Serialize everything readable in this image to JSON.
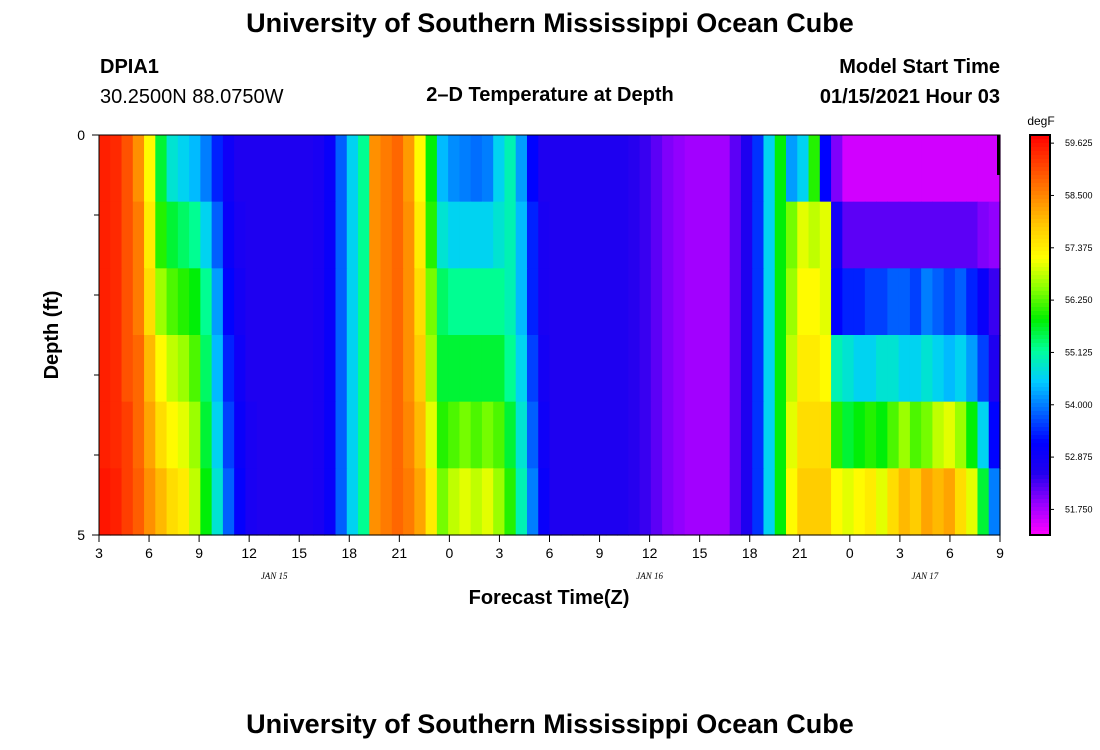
{
  "header": {
    "title": "University of Southern Mississippi Ocean Cube",
    "station": "DPIA1",
    "coords": "30.2500N 88.0750W",
    "chart_title": "2–D Temperature at Depth",
    "model_start_label": "Model Start Time",
    "model_start_value": "01/15/2021 Hour 03"
  },
  "footer": {
    "title": "University of Southern Mississippi Ocean Cube"
  },
  "colors": {
    "scale": [
      "#ff00ff",
      "#9900ff",
      "#2200ee",
      "#0000ff",
      "#0066ff",
      "#00ccff",
      "#00ff99",
      "#00ee00",
      "#88ff00",
      "#ffff00",
      "#ffcc00",
      "#ff8800",
      "#ff4400",
      "#ff0000"
    ]
  },
  "chart_data": {
    "type": "heatmap",
    "title": "2–D Temperature at Depth",
    "xlabel": "Forecast Time(Z)",
    "ylabel": "Depth (ft)",
    "x_unit": "forecast hour (Z), hourly from JAN 15 03Z",
    "x_range": [
      0,
      54
    ],
    "y_range": [
      0,
      5
    ],
    "x_ticks": [
      {
        "h": 0,
        "label": "3"
      },
      {
        "h": 3,
        "label": "6"
      },
      {
        "h": 6,
        "label": "9"
      },
      {
        "h": 9,
        "label": "12"
      },
      {
        "h": 12,
        "label": "15"
      },
      {
        "h": 15,
        "label": "18"
      },
      {
        "h": 18,
        "label": "21"
      },
      {
        "h": 21,
        "label": "0"
      },
      {
        "h": 24,
        "label": "3"
      },
      {
        "h": 27,
        "label": "6"
      },
      {
        "h": 30,
        "label": "9"
      },
      {
        "h": 33,
        "label": "12"
      },
      {
        "h": 36,
        "label": "15"
      },
      {
        "h": 39,
        "label": "18"
      },
      {
        "h": 42,
        "label": "21"
      },
      {
        "h": 45,
        "label": "0"
      },
      {
        "h": 48,
        "label": "3"
      },
      {
        "h": 51,
        "label": "6"
      },
      {
        "h": 54,
        "label": "9"
      }
    ],
    "date_labels": [
      {
        "h": 10.5,
        "label": "JAN 15"
      },
      {
        "h": 33,
        "label": "JAN 16"
      },
      {
        "h": 49.5,
        "label": "JAN 17"
      }
    ],
    "y_ticks": [
      {
        "d": 0,
        "label": "0"
      },
      {
        "d": 5,
        "label": "5"
      }
    ],
    "y_minor_ticks": [
      1,
      2,
      3,
      4
    ],
    "colorbar": {
      "unit": "degF",
      "min": 51.2,
      "max": 59.8,
      "labels": [
        59.625,
        58.5,
        57.375,
        56.25,
        55.125,
        54.0,
        52.875,
        51.75
      ],
      "label_text": [
        "59.625",
        "58.500",
        "57.375",
        "56.250",
        "55.125",
        "54.000",
        "52.875",
        "51.750"
      ]
    },
    "depth_layers": [
      "0-1",
      "1-2",
      "2-3",
      "3-4",
      "4-5"
    ],
    "values_degF": [
      [
        59.5,
        59.4,
        59.0,
        58.4,
        57.2,
        55.6,
        54.8,
        54.6,
        54.4,
        54.0,
        53.4,
        52.9,
        52.6,
        52.6,
        52.6,
        52.6,
        52.6,
        52.6,
        52.6,
        52.7,
        53.0,
        53.8,
        54.6,
        55.2,
        58.4,
        58.6,
        58.8,
        58.3,
        57.2,
        55.8,
        54.4,
        54.1,
        54.0,
        53.9,
        54.0,
        54.6,
        55.0,
        54.2,
        53.2,
        52.6,
        52.6,
        52.6,
        52.6,
        52.6,
        52.6,
        52.6,
        52.6,
        52.5,
        52.4,
        52.2,
        52.0,
        51.9,
        51.8,
        51.8,
        51.8,
        51.8,
        52.2,
        52.6,
        53.5,
        54.6,
        55.8,
        54.2,
        54.6,
        56.0,
        53.2,
        52.0,
        51.5,
        51.5,
        51.5,
        51.5,
        51.5,
        51.5,
        51.5,
        51.5,
        51.5,
        51.5,
        51.5,
        51.5,
        51.5,
        51.5
      ],
      [
        59.5,
        59.4,
        59.0,
        58.6,
        57.4,
        56.0,
        55.6,
        55.4,
        55.2,
        54.6,
        53.8,
        53.0,
        52.7,
        52.6,
        52.6,
        52.6,
        52.6,
        52.6,
        52.6,
        52.7,
        53.0,
        53.8,
        54.6,
        55.2,
        58.4,
        58.6,
        58.8,
        58.4,
        57.4,
        56.0,
        54.8,
        54.6,
        54.6,
        54.6,
        54.6,
        54.8,
        55.0,
        54.4,
        53.4,
        52.7,
        52.6,
        52.6,
        52.6,
        52.6,
        52.6,
        52.6,
        52.6,
        52.5,
        52.4,
        52.2,
        52.0,
        51.9,
        51.8,
        51.8,
        51.8,
        51.8,
        52.2,
        52.6,
        53.5,
        54.6,
        55.8,
        56.4,
        57.0,
        56.8,
        57.0,
        52.8,
        52.2,
        52.2,
        52.2,
        52.2,
        52.2,
        52.2,
        52.2,
        52.2,
        52.2,
        52.2,
        52.2,
        52.2,
        52.0,
        51.9
      ],
      [
        59.5,
        59.4,
        59.0,
        58.6,
        57.6,
        56.6,
        56.2,
        56.0,
        55.8,
        55.2,
        54.2,
        53.2,
        52.8,
        52.6,
        52.6,
        52.6,
        52.6,
        52.6,
        52.6,
        52.7,
        53.0,
        53.8,
        54.6,
        55.2,
        58.4,
        58.6,
        58.8,
        58.4,
        57.6,
        56.4,
        55.4,
        55.2,
        55.2,
        55.2,
        55.2,
        55.2,
        55.0,
        54.4,
        53.4,
        52.7,
        52.6,
        52.6,
        52.6,
        52.6,
        52.6,
        52.6,
        52.6,
        52.5,
        52.4,
        52.2,
        52.0,
        51.9,
        51.8,
        51.8,
        51.8,
        51.8,
        52.2,
        52.6,
        53.5,
        54.6,
        55.8,
        56.6,
        57.2,
        57.2,
        57.0,
        53.2,
        53.4,
        53.4,
        53.6,
        53.6,
        53.8,
        53.8,
        53.6,
        54.0,
        53.8,
        53.6,
        53.8,
        53.4,
        53.0,
        52.4
      ],
      [
        59.5,
        59.4,
        59.0,
        58.8,
        58.0,
        57.2,
        56.8,
        56.6,
        56.2,
        55.4,
        54.4,
        53.4,
        52.9,
        52.6,
        52.6,
        52.6,
        52.6,
        52.6,
        52.6,
        52.7,
        53.0,
        53.8,
        54.6,
        55.2,
        58.4,
        58.6,
        58.8,
        58.4,
        57.8,
        56.6,
        55.6,
        55.6,
        55.6,
        55.6,
        55.6,
        55.6,
        55.2,
        54.6,
        53.6,
        52.8,
        52.6,
        52.6,
        52.6,
        52.6,
        52.6,
        52.6,
        52.6,
        52.5,
        52.4,
        52.2,
        52.0,
        51.9,
        51.8,
        51.8,
        51.8,
        51.8,
        52.2,
        52.6,
        53.5,
        54.6,
        55.8,
        56.8,
        57.4,
        57.4,
        57.2,
        55.0,
        54.8,
        54.6,
        54.6,
        54.8,
        54.8,
        54.6,
        54.6,
        54.8,
        54.6,
        54.4,
        54.6,
        54.2,
        53.6,
        52.6
      ],
      [
        59.5,
        59.4,
        59.2,
        58.8,
        58.2,
        57.6,
        57.2,
        57.0,
        56.6,
        55.6,
        54.6,
        53.6,
        53.0,
        52.7,
        52.6,
        52.6,
        52.6,
        52.6,
        52.6,
        52.7,
        53.0,
        53.8,
        54.6,
        55.2,
        58.4,
        58.6,
        58.8,
        58.5,
        58.0,
        57.0,
        56.0,
        56.2,
        56.4,
        56.2,
        56.4,
        56.2,
        55.6,
        54.8,
        53.8,
        52.9,
        52.6,
        52.6,
        52.6,
        52.6,
        52.6,
        52.6,
        52.6,
        52.5,
        52.4,
        52.2,
        52.0,
        51.9,
        51.8,
        51.8,
        51.8,
        51.8,
        52.2,
        52.6,
        53.5,
        54.6,
        55.8,
        57.0,
        57.6,
        57.6,
        57.6,
        56.0,
        55.6,
        55.8,
        56.0,
        55.8,
        56.2,
        56.6,
        56.2,
        56.4,
        56.8,
        57.0,
        56.6,
        55.8,
        54.6,
        53.2
      ],
      [
        59.6,
        59.5,
        59.2,
        58.9,
        58.4,
        58.0,
        57.6,
        57.4,
        56.8,
        55.8,
        54.8,
        53.8,
        53.1,
        52.7,
        52.6,
        52.6,
        52.6,
        52.6,
        52.6,
        52.7,
        53.0,
        53.8,
        54.6,
        55.2,
        58.4,
        58.6,
        58.8,
        58.6,
        58.2,
        57.4,
        56.4,
        56.8,
        57.0,
        56.8,
        57.0,
        56.6,
        56.0,
        55.0,
        54.0,
        53.0,
        52.6,
        52.6,
        52.6,
        52.6,
        52.6,
        52.6,
        52.6,
        52.5,
        52.4,
        52.2,
        52.0,
        51.9,
        51.8,
        51.8,
        51.8,
        51.8,
        52.2,
        52.6,
        53.5,
        54.6,
        55.8,
        57.2,
        57.8,
        57.8,
        57.8,
        57.2,
        57.0,
        57.2,
        57.4,
        57.0,
        57.6,
        58.0,
        57.8,
        58.2,
        58.0,
        58.2,
        57.6,
        57.0,
        55.6,
        54.0
      ]
    ]
  }
}
